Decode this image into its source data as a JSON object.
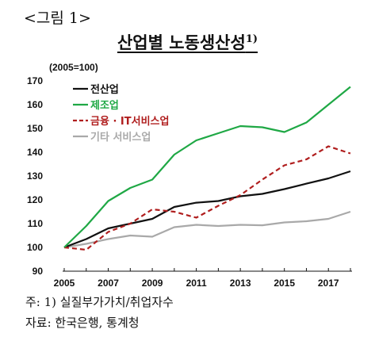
{
  "header": {
    "figure_label": "<그림 1>",
    "title_main": "산업별 노동생산성",
    "title_sup": "1)"
  },
  "notes": {
    "note1": "주: 1) 실질부가가치/취업자수",
    "source": "자료: 한국은행, 통계청"
  },
  "colors": {
    "total": "#111111",
    "manufacturing": "#1fa845",
    "finance_it": "#b01e1e",
    "other_services": "#a9a9a9"
  },
  "chart_data": {
    "type": "line",
    "y_unit_label": "(2005=100)",
    "x": [
      2005,
      2006,
      2007,
      2008,
      2009,
      2010,
      2011,
      2012,
      2013,
      2014,
      2015,
      2016,
      2017,
      2018
    ],
    "x_ticks": [
      "2005",
      "2007",
      "2009",
      "2011",
      "2013",
      "2015",
      "2017"
    ],
    "ylim": [
      90,
      170
    ],
    "y_ticks": [
      "90",
      "100",
      "110",
      "120",
      "130",
      "140",
      "150",
      "160",
      "170"
    ],
    "legend_position": "top-left",
    "series": [
      {
        "name": "전산업",
        "style": "solid",
        "color_key": "total",
        "values": [
          100,
          103.5,
          108,
          110,
          112,
          117,
          118.8,
          119.5,
          121.5,
          122.5,
          124.5,
          126.8,
          129,
          132
        ]
      },
      {
        "name": "제조업",
        "style": "solid",
        "color_key": "manufacturing",
        "values": [
          100,
          109,
          119.5,
          125,
          128.5,
          139,
          145,
          148,
          151,
          150.5,
          148.5,
          152.5,
          160,
          167.5
        ]
      },
      {
        "name": "금융 · IT서비스업",
        "style": "dashed",
        "color_key": "finance_it",
        "values": [
          100,
          99,
          106.5,
          110,
          116,
          115,
          112.5,
          117.5,
          122,
          128.5,
          134.5,
          137,
          142.5,
          139.5
        ]
      },
      {
        "name": "기타 서비스업",
        "style": "solid",
        "color_key": "other_services",
        "values": [
          100,
          101.5,
          103.5,
          105,
          104.5,
          108.5,
          109.5,
          109,
          109.5,
          109.3,
          110.5,
          111,
          112,
          115
        ]
      }
    ]
  }
}
